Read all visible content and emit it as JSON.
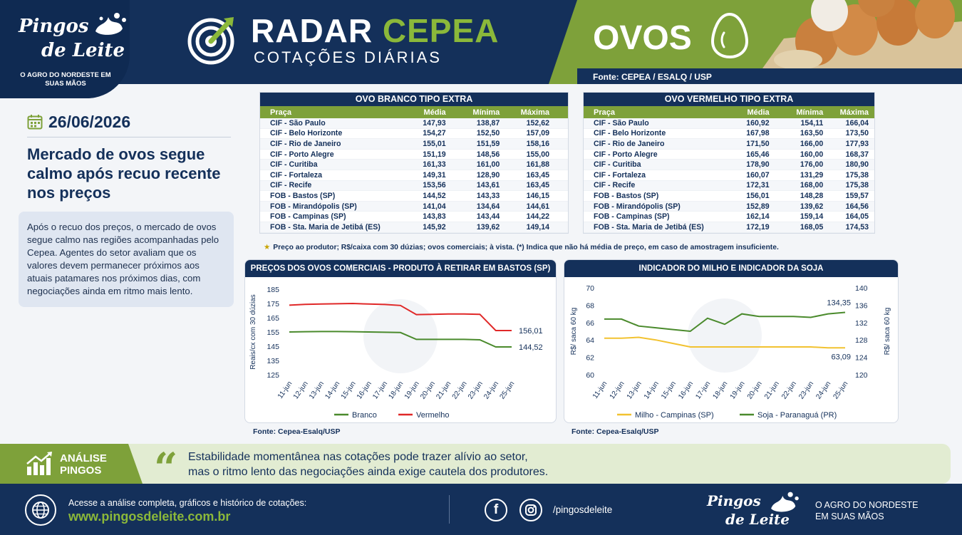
{
  "header": {
    "brand_line1": "Pingos",
    "brand_line2": "de Leite",
    "brand_tagline": "O AGRO DO NORDESTE EM SUAS MÃOS",
    "title_part1": "RADAR",
    "title_part2": "CEPEA",
    "subtitle": "COTAÇÕES DIÁRIAS",
    "product": "OVOS",
    "source": "Fonte: CEPEA / ESALQ / USP"
  },
  "colors": {
    "navy": "#14305a",
    "green": "#7ea13a",
    "red": "#e02828",
    "yellow": "#f2c230"
  },
  "left": {
    "date": "26/06/2026",
    "headline": "Mercado de ovos segue calmo após recuo recente nos preços",
    "summary": "Após o recuo dos preços, o mercado de ovos segue calmo nas regiões acompanhadas pelo Cepea. Agentes do setor avaliam que os valores devem permanecer próximos aos atuais patamares nos próximos dias, com negociações ainda em ritmo mais lento."
  },
  "tables": [
    {
      "title": "OVO BRANCO TIPO EXTRA",
      "headers": [
        "Praça",
        "Média",
        "Mínima",
        "Máxima"
      ],
      "rows": [
        [
          "CIF - São Paulo",
          "147,93",
          "138,87",
          "152,62"
        ],
        [
          "CIF - Belo Horizonte",
          "154,27",
          "152,50",
          "157,09"
        ],
        [
          "CIF - Rio de Janeiro",
          "155,01",
          "151,59",
          "158,16"
        ],
        [
          "CIF - Porto Alegre",
          "151,19",
          "148,56",
          "155,00"
        ],
        [
          "CIF - Curitiba",
          "161,33",
          "161,00",
          "161,88"
        ],
        [
          "CIF - Fortaleza",
          "149,31",
          "128,90",
          "163,45"
        ],
        [
          "CIF - Recife",
          "153,56",
          "143,61",
          "163,45"
        ],
        [
          "FOB - Bastos (SP)",
          "144,52",
          "143,33",
          "146,15"
        ],
        [
          "FOB - Mirandópolis (SP)",
          "141,04",
          "134,64",
          "144,61"
        ],
        [
          "FOB - Campinas (SP)",
          "143,83",
          "143,44",
          "144,22"
        ],
        [
          "FOB - Sta. Maria de Jetibá (ES)",
          "145,92",
          "139,62",
          "149,14"
        ]
      ]
    },
    {
      "title": "OVO VERMELHO TIPO EXTRA",
      "headers": [
        "Praça",
        "Média",
        "Mínima",
        "Máxima"
      ],
      "rows": [
        [
          "CIF - São Paulo",
          "160,92",
          "154,11",
          "166,04"
        ],
        [
          "CIF - Belo Horizonte",
          "167,98",
          "163,50",
          "173,50"
        ],
        [
          "CIF - Rio de Janeiro",
          "171,50",
          "166,00",
          "177,93"
        ],
        [
          "CIF - Porto Alegre",
          "165,46",
          "160,00",
          "168,37"
        ],
        [
          "CIF - Curitiba",
          "178,90",
          "176,00",
          "180,90"
        ],
        [
          "CIF - Fortaleza",
          "160,07",
          "131,29",
          "175,38"
        ],
        [
          "CIF - Recife",
          "172,31",
          "168,00",
          "175,38"
        ],
        [
          "FOB - Bastos (SP)",
          "156,01",
          "148,28",
          "159,57"
        ],
        [
          "FOB - Mirandópolis (SP)",
          "152,89",
          "139,62",
          "164,56"
        ],
        [
          "FOB - Campinas (SP)",
          "162,14",
          "159,14",
          "164,05"
        ],
        [
          "FOB - Sta. Maria de Jetibá (ES)",
          "172,19",
          "168,05",
          "174,53"
        ]
      ]
    }
  ],
  "table_note": "Preço ao produtor; R$/caixa com 30 dúzias; ovos comerciais; à vista. (*) Indica que não há média de preço, em caso de amostragem insuficiente.",
  "chart_data": [
    {
      "type": "line",
      "title": "PREÇOS DOS OVOS COMERCIAIS - PRODUTO À RETIRAR EM BASTOS (SP)",
      "ylabel": "Reais/cx com 30 dúzias",
      "ylim": [
        125,
        185
      ],
      "yticks": [
        125,
        135,
        145,
        155,
        165,
        175,
        185
      ],
      "categories": [
        "11-jun",
        "12-jun",
        "13-jun",
        "14-jun",
        "15-jun",
        "16-jun",
        "17-jun",
        "18-jun",
        "19-jun",
        "20-jun",
        "21-jun",
        "22-jun",
        "23-jun",
        "24-jun",
        "25-jun"
      ],
      "series": [
        {
          "name": "Branco",
          "color": "#4a8a2c",
          "values": [
            155,
            155.2,
            155.3,
            155.3,
            155.2,
            155,
            154.8,
            154.6,
            149.8,
            149.8,
            149.8,
            149.8,
            149.5,
            144.52,
            144.52
          ],
          "end_label": "144,52"
        },
        {
          "name": "Vermelho",
          "color": "#e02828",
          "values": [
            173.8,
            174.4,
            174.6,
            174.8,
            175,
            174.6,
            174.3,
            173.6,
            167.2,
            167.4,
            167.6,
            167.6,
            167.4,
            156.01,
            156.01
          ],
          "end_label": "156,01"
        }
      ],
      "legend": "bottom",
      "source": "Fonte: Cepea-Esalq/USP"
    },
    {
      "type": "line",
      "title": "INDICADOR DO MILHO E INDICADOR DA SOJA",
      "ylabel_left": "R$/ saca 60 kg",
      "ylabel_right": "R$/ saca 60 kg",
      "ylim_left": [
        60,
        70
      ],
      "yticks_left": [
        60,
        62,
        64,
        66,
        68,
        70
      ],
      "ylim_right": [
        120,
        140
      ],
      "yticks_right": [
        120,
        124,
        128,
        132,
        136,
        140
      ],
      "categories": [
        "11-jun",
        "12-jun",
        "13-jun",
        "14-jun",
        "15-jun",
        "16-jun",
        "17-jun",
        "18-jun",
        "19-jun",
        "20-jun",
        "21-jun",
        "22-jun",
        "23-jun",
        "24-jun",
        "25-jun"
      ],
      "series": [
        {
          "name": "Milho - Campinas (SP)",
          "axis": "left",
          "color": "#f2c230",
          "values": [
            64.2,
            64.2,
            64.3,
            64,
            63.6,
            63.2,
            63.2,
            63.2,
            63.2,
            63.2,
            63.2,
            63.2,
            63.2,
            63.09,
            63.09
          ],
          "end_label": "63,09"
        },
        {
          "name": "Soja - Paranaguá (PR)",
          "axis": "right",
          "color": "#4a8a2c",
          "values": [
            132.8,
            132.8,
            131.2,
            130.8,
            130.4,
            130,
            133,
            131.6,
            134,
            133.4,
            133.4,
            133.4,
            133.2,
            134,
            134.35
          ],
          "end_label": "134,35"
        }
      ],
      "legend": "bottom",
      "source": "Fonte: Cepea-Esalq/USP"
    }
  ],
  "analise": {
    "label_line1": "ANÁLISE",
    "label_line2": "PINGOS",
    "text_line1": "Estabilidade momentânea nas cotações pode trazer alívio ao setor,",
    "text_line2": "mas o ritmo lento das negociações ainda exige cautela dos produtores."
  },
  "footer": {
    "line1": "Acesse a análise completa, gráficos e histórico de cotações:",
    "url": "www.pingosdeleite.com.br",
    "handle": "/pingosdeleite",
    "brand_line1": "Pingos",
    "brand_line2": "de Leite",
    "tag_line1": "O AGRO DO NORDESTE",
    "tag_line2": "EM SUAS MÃOS"
  }
}
